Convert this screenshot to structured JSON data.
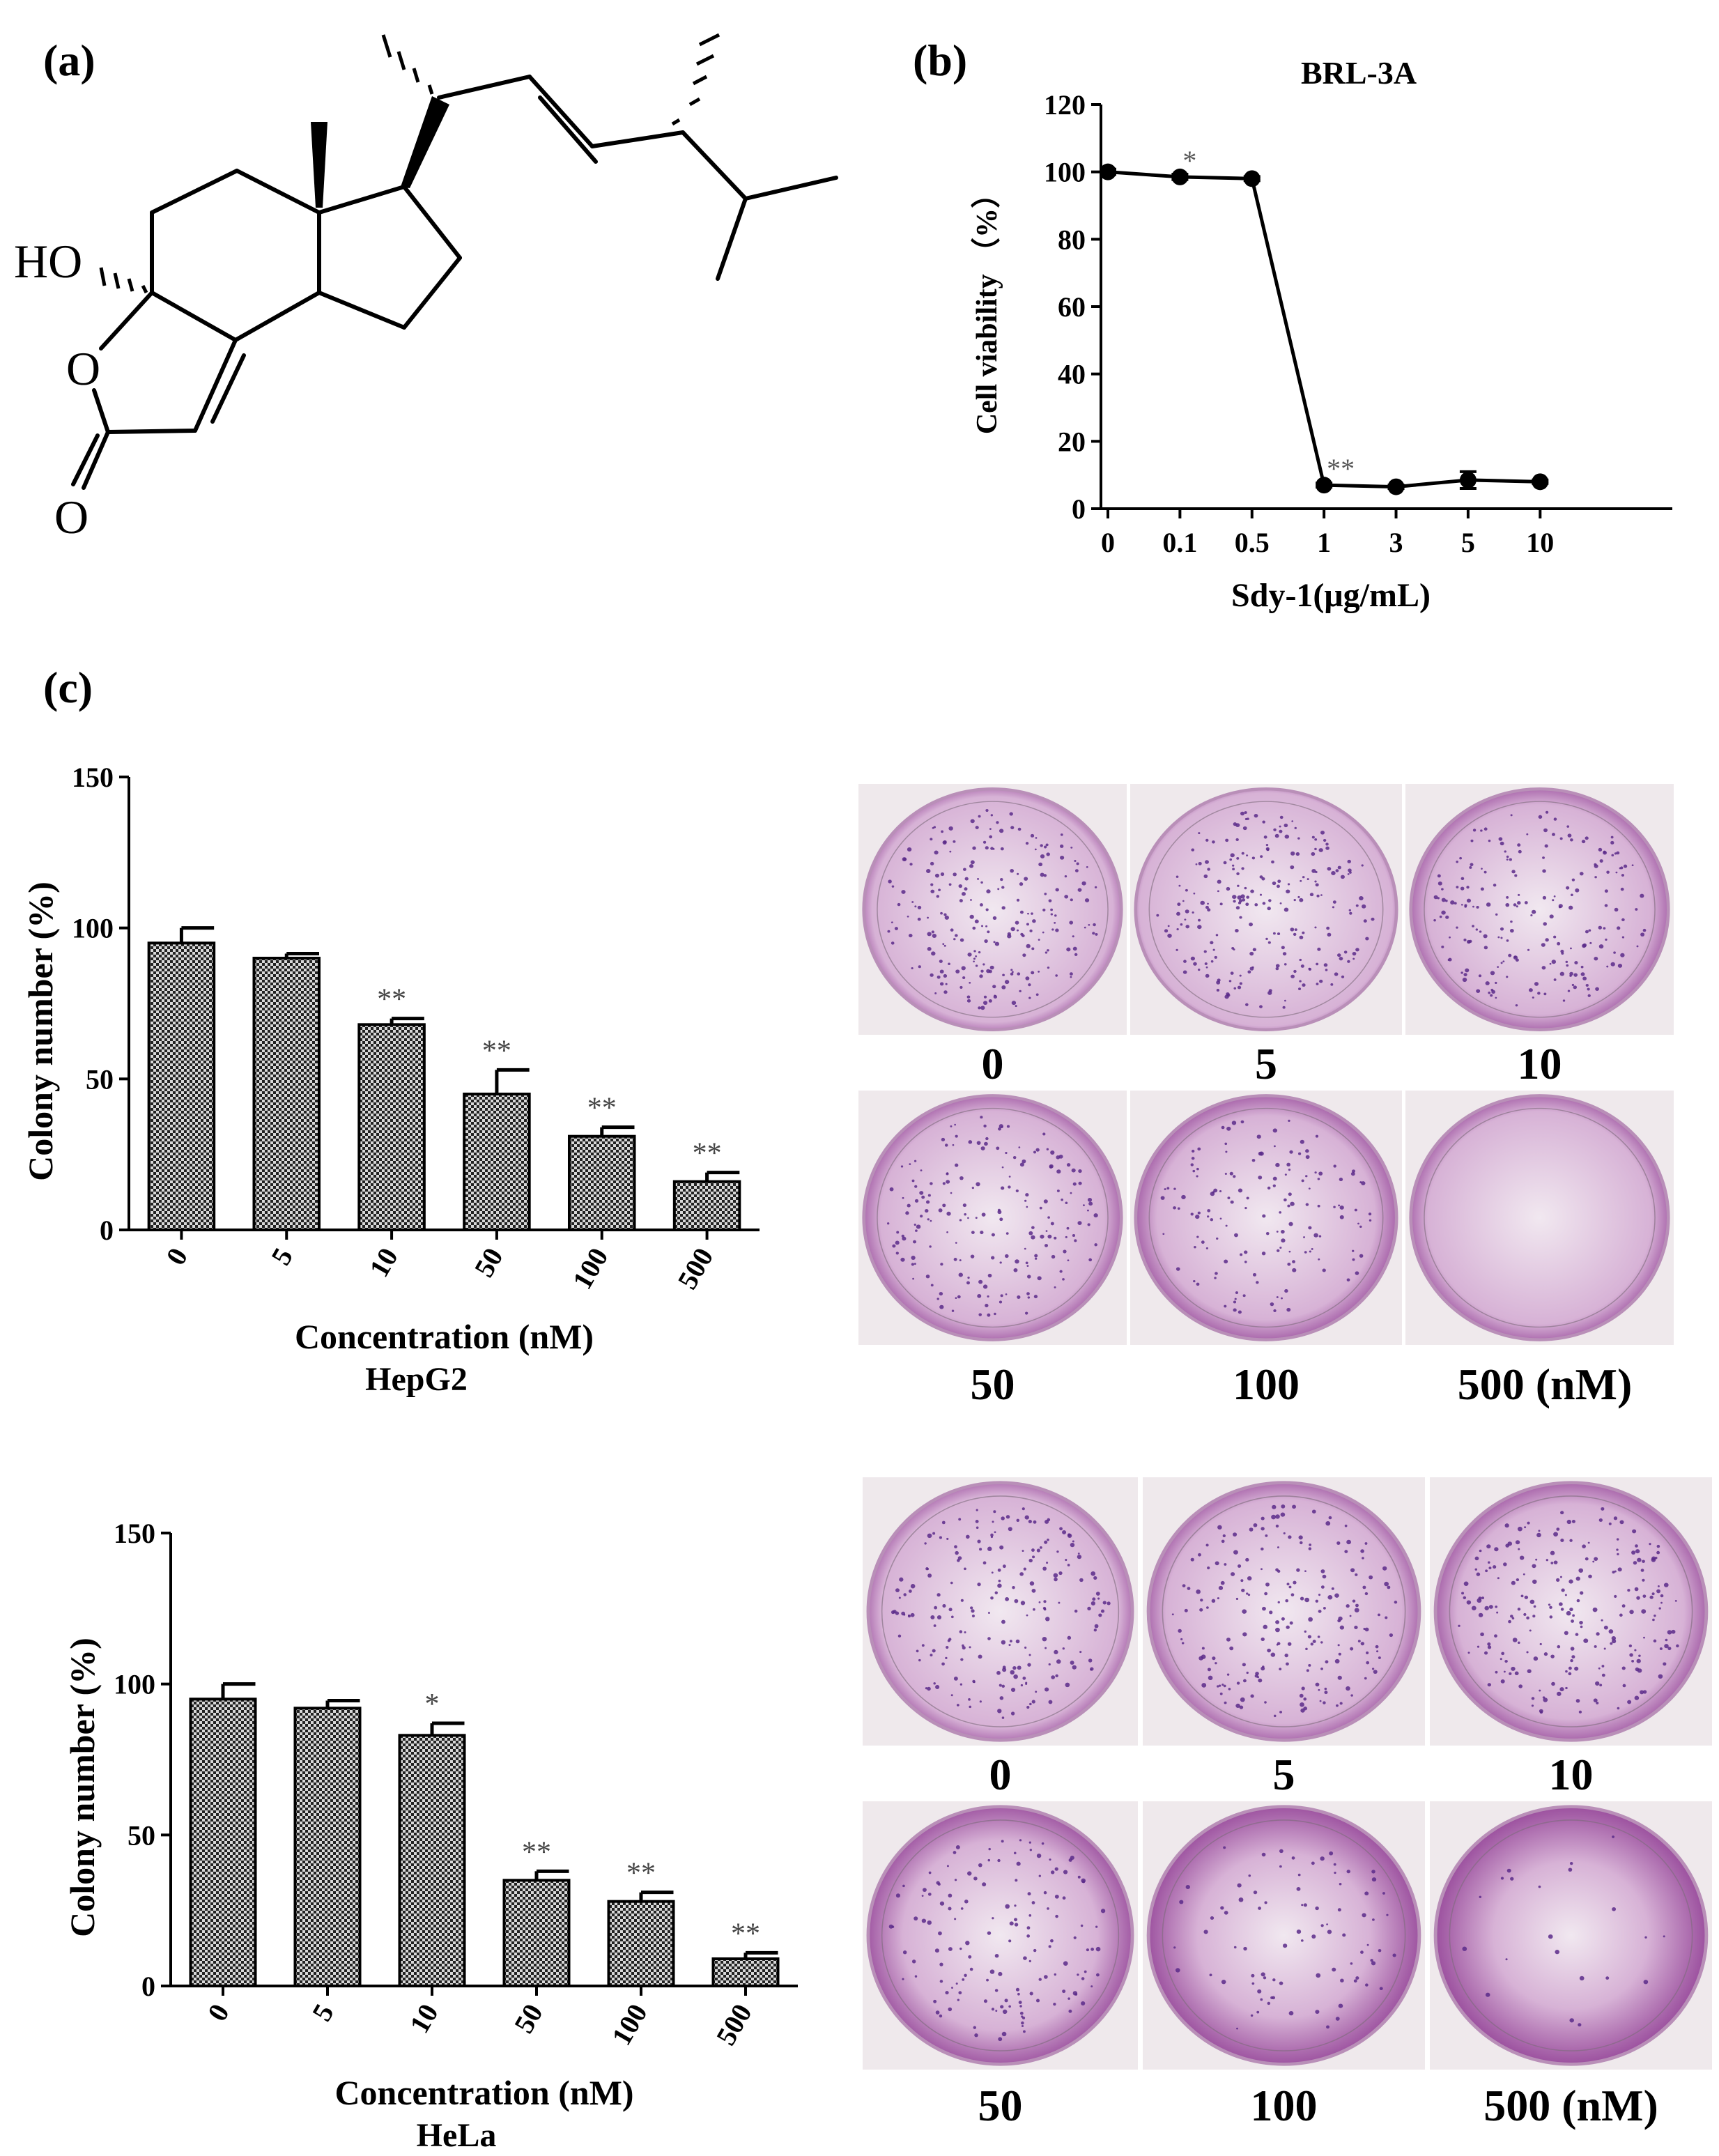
{
  "panels": {
    "a": {
      "label": "(a)",
      "atoms": {
        "ho": "HO",
        "o_ring": "O",
        "o_carbonyl": "O"
      }
    },
    "b": {
      "label": "(b)"
    },
    "c": {
      "label": "(c)"
    }
  },
  "colors": {
    "dish_light": "#f1e8f0",
    "dish_mid": "#d7b2d6",
    "dish_dark": "#8e3a92",
    "colony": "#5a2a8a"
  },
  "chart_data": [
    {
      "id": "brl3a",
      "type": "line",
      "title": "BRL-3A",
      "xlabel": "Sdy-1(μg/mL)",
      "ylabel": "Cell viability （%）",
      "categories": [
        "0",
        "0.1",
        "0.5",
        "1",
        "3",
        "5",
        "10"
      ],
      "values": [
        100,
        98.5,
        98,
        7,
        6.5,
        8.5,
        8
      ],
      "errors": [
        0.8,
        0.8,
        0.6,
        0.6,
        0.5,
        2.5,
        0.5
      ],
      "ylim": [
        0,
        120
      ],
      "yticks": [
        "0",
        "20",
        "40",
        "60",
        "80",
        "100",
        "120"
      ],
      "annotations": [
        {
          "category": "0.1",
          "text": "*"
        },
        {
          "category": "1",
          "text": "**"
        }
      ],
      "grid": false
    },
    {
      "id": "hepg2",
      "type": "bar",
      "xlabel": "Concentration (nM)",
      "caption": "HepG2",
      "ylabel": "Colony number (%)",
      "categories": [
        "0",
        "5",
        "10",
        "50",
        "100",
        "500"
      ],
      "values": [
        95,
        90,
        68,
        45,
        31,
        16
      ],
      "errors": [
        5,
        1.5,
        2,
        8,
        3,
        3
      ],
      "ylim": [
        0,
        150
      ],
      "yticks": [
        "0",
        "50",
        "100",
        "150"
      ],
      "annotations": [
        "",
        "",
        "**",
        "**",
        "**",
        "**"
      ],
      "grid": false
    },
    {
      "id": "hela",
      "type": "bar",
      "xlabel": "Concentration (nM)",
      "caption": "HeLa",
      "ylabel": "Colony number (%)",
      "categories": [
        "0",
        "5",
        "10",
        "50",
        "100",
        "500"
      ],
      "values": [
        95,
        92,
        83,
        35,
        28,
        9
      ],
      "errors": [
        5,
        2.5,
        4,
        3,
        3,
        2
      ],
      "ylim": [
        0,
        150
      ],
      "yticks": [
        "0",
        "50",
        "100",
        "150"
      ],
      "annotations": [
        "",
        "",
        "*",
        "**",
        "**",
        "**"
      ],
      "grid": false
    }
  ],
  "dishes": {
    "hepg2": {
      "top_labels": [
        "0",
        "5",
        "10"
      ],
      "bottom_labels": [
        "50",
        "100",
        "500 (nM)"
      ],
      "colony_density": [
        0.55,
        0.55,
        0.5,
        0.45,
        0.35,
        0.0
      ],
      "stain_level": [
        0.25,
        0.2,
        0.35,
        0.35,
        0.4,
        0.35
      ]
    },
    "hela": {
      "top_labels": [
        "0",
        "5",
        "10"
      ],
      "bottom_labels": [
        "50",
        "100",
        "500 (nM)"
      ],
      "colony_density": [
        0.5,
        0.5,
        0.55,
        0.35,
        0.2,
        0.05
      ],
      "stain_level": [
        0.3,
        0.35,
        0.4,
        0.55,
        0.7,
        0.8
      ]
    }
  }
}
